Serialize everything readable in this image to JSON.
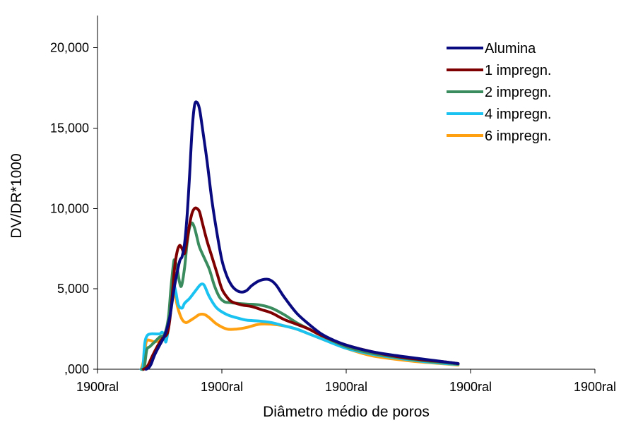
{
  "chart_data": {
    "type": "line",
    "title": "",
    "xlabel": "Diâmetro médio de poros",
    "ylabel": "DV/DR*1000",
    "xlim": [
      0,
      200
    ],
    "ylim": [
      0,
      22000
    ],
    "x_tick_labels": [
      "1900ral",
      "1900ral",
      "1900ral",
      "1900ral",
      "1900ral"
    ],
    "y_ticks": [
      {
        "value": 0,
        "label": ",000"
      },
      {
        "value": 5000,
        "label": "5,000"
      },
      {
        "value": 10000,
        "label": "10,000"
      },
      {
        "value": 15000,
        "label": "15,000"
      },
      {
        "value": 20000,
        "label": "20,000"
      }
    ],
    "grid": false,
    "legend": "top-right",
    "series": [
      {
        "name": "Alumina",
        "color": "#0a0a80",
        "points": [
          [
            19.5,
            0
          ],
          [
            20.5,
            80
          ],
          [
            21.5,
            300
          ],
          [
            23,
            900
          ],
          [
            25,
            1500
          ],
          [
            27,
            2100
          ],
          [
            29,
            3200
          ],
          [
            31,
            5200
          ],
          [
            33,
            6700
          ],
          [
            34,
            7000
          ],
          [
            35,
            7800
          ],
          [
            36,
            9500
          ],
          [
            37,
            12000
          ],
          [
            38,
            14800
          ],
          [
            39,
            16400
          ],
          [
            40,
            16600
          ],
          [
            41,
            16200
          ],
          [
            42,
            15200
          ],
          [
            44,
            13000
          ],
          [
            46,
            10500
          ],
          [
            48,
            8500
          ],
          [
            50,
            6800
          ],
          [
            52,
            5800
          ],
          [
            54,
            5200
          ],
          [
            56,
            4900
          ],
          [
            58,
            4800
          ],
          [
            60,
            4900
          ],
          [
            62,
            5200
          ],
          [
            65,
            5500
          ],
          [
            68,
            5600
          ],
          [
            70,
            5500
          ],
          [
            72,
            5200
          ],
          [
            75,
            4500
          ],
          [
            80,
            3500
          ],
          [
            85,
            2800
          ],
          [
            90,
            2200
          ],
          [
            95,
            1800
          ],
          [
            100,
            1500
          ],
          [
            110,
            1100
          ],
          [
            120,
            850
          ],
          [
            130,
            650
          ],
          [
            140,
            450
          ],
          [
            145,
            350
          ]
        ]
      },
      {
        "name": "1 impregn.",
        "color": "#7f0000",
        "points": [
          [
            18.5,
            0
          ],
          [
            19.5,
            80
          ],
          [
            20.5,
            300
          ],
          [
            22,
            800
          ],
          [
            24,
            1400
          ],
          [
            26,
            1900
          ],
          [
            28,
            2200
          ],
          [
            29,
            3000
          ],
          [
            30,
            4500
          ],
          [
            31,
            6300
          ],
          [
            32,
            7300
          ],
          [
            33,
            7700
          ],
          [
            34,
            7500
          ],
          [
            35,
            7200
          ],
          [
            36,
            8000
          ],
          [
            37,
            9000
          ],
          [
            38,
            9700
          ],
          [
            39,
            10000
          ],
          [
            40,
            10000
          ],
          [
            41,
            9800
          ],
          [
            42,
            9200
          ],
          [
            44,
            8000
          ],
          [
            46,
            7000
          ],
          [
            48,
            6000
          ],
          [
            50,
            5000
          ],
          [
            52,
            4500
          ],
          [
            54,
            4200
          ],
          [
            58,
            4000
          ],
          [
            62,
            3900
          ],
          [
            66,
            3700
          ],
          [
            70,
            3500
          ],
          [
            75,
            3100
          ],
          [
            80,
            2800
          ],
          [
            85,
            2500
          ],
          [
            90,
            2100
          ],
          [
            100,
            1500
          ],
          [
            110,
            1100
          ],
          [
            120,
            800
          ],
          [
            130,
            600
          ],
          [
            140,
            450
          ],
          [
            145,
            350
          ]
        ]
      },
      {
        "name": "2 impregn.",
        "color": "#3a8c5e",
        "points": [
          [
            17.8,
            0
          ],
          [
            18.8,
            100
          ],
          [
            19.8,
            1200
          ],
          [
            21,
            1400
          ],
          [
            23,
            1700
          ],
          [
            25,
            2000
          ],
          [
            27,
            2200
          ],
          [
            28.5,
            3200
          ],
          [
            29.5,
            5000
          ],
          [
            30.5,
            6500
          ],
          [
            31,
            6800
          ],
          [
            32,
            6300
          ],
          [
            33,
            5400
          ],
          [
            33.8,
            5200
          ],
          [
            35,
            6300
          ],
          [
            36,
            7800
          ],
          [
            37,
            8800
          ],
          [
            38,
            9100
          ],
          [
            39,
            8800
          ],
          [
            40,
            8200
          ],
          [
            41,
            7600
          ],
          [
            43,
            6900
          ],
          [
            45,
            6200
          ],
          [
            47,
            5200
          ],
          [
            49,
            4500
          ],
          [
            51,
            4200
          ],
          [
            53,
            4150
          ],
          [
            56,
            4100
          ],
          [
            60,
            4050
          ],
          [
            65,
            4000
          ],
          [
            70,
            3800
          ],
          [
            75,
            3400
          ],
          [
            80,
            2900
          ],
          [
            85,
            2500
          ],
          [
            90,
            2100
          ],
          [
            100,
            1400
          ],
          [
            110,
            1000
          ],
          [
            120,
            750
          ],
          [
            130,
            550
          ],
          [
            140,
            400
          ],
          [
            145,
            320
          ]
        ]
      },
      {
        "name": "4 impregn.",
        "color": "#19c2f0",
        "points": [
          [
            17.5,
            0
          ],
          [
            18.3,
            200
          ],
          [
            19,
            1600
          ],
          [
            20,
            2100
          ],
          [
            21.5,
            2200
          ],
          [
            23,
            2200
          ],
          [
            25,
            2200
          ],
          [
            26,
            2300
          ],
          [
            27,
            2100
          ],
          [
            27.5,
            1700
          ],
          [
            28.5,
            2600
          ],
          [
            29.5,
            4300
          ],
          [
            30.5,
            5300
          ],
          [
            31.5,
            4800
          ],
          [
            32.5,
            4000
          ],
          [
            34,
            3800
          ],
          [
            35,
            4100
          ],
          [
            37,
            4400
          ],
          [
            39,
            4800
          ],
          [
            41,
            5200
          ],
          [
            42,
            5300
          ],
          [
            43,
            5200
          ],
          [
            45,
            4500
          ],
          [
            48,
            3800
          ],
          [
            52,
            3400
          ],
          [
            56,
            3200
          ],
          [
            60,
            3050
          ],
          [
            65,
            3000
          ],
          [
            70,
            2900
          ],
          [
            75,
            2700
          ],
          [
            80,
            2500
          ],
          [
            85,
            2200
          ],
          [
            90,
            1900
          ],
          [
            100,
            1300
          ],
          [
            110,
            950
          ],
          [
            120,
            700
          ],
          [
            130,
            500
          ],
          [
            140,
            350
          ],
          [
            145,
            300
          ]
        ]
      },
      {
        "name": "6 impregn.",
        "color": "#ffa010",
        "points": [
          [
            17.6,
            0
          ],
          [
            18.6,
            600
          ],
          [
            19.6,
            1700
          ],
          [
            21,
            1800
          ],
          [
            23,
            1700
          ],
          [
            25,
            1800
          ],
          [
            27,
            1900
          ],
          [
            28,
            2100
          ],
          [
            29,
            3200
          ],
          [
            30,
            4500
          ],
          [
            30.8,
            5000
          ],
          [
            31.5,
            4400
          ],
          [
            32.5,
            3700
          ],
          [
            34,
            3100
          ],
          [
            35.5,
            2900
          ],
          [
            37,
            3000
          ],
          [
            39,
            3200
          ],
          [
            41,
            3400
          ],
          [
            43,
            3400
          ],
          [
            45,
            3200
          ],
          [
            48,
            2800
          ],
          [
            52,
            2500
          ],
          [
            56,
            2500
          ],
          [
            60,
            2600
          ],
          [
            65,
            2800
          ],
          [
            70,
            2800
          ],
          [
            75,
            2700
          ],
          [
            80,
            2500
          ],
          [
            85,
            2200
          ],
          [
            90,
            1900
          ],
          [
            100,
            1300
          ],
          [
            110,
            850
          ],
          [
            120,
            620
          ],
          [
            130,
            450
          ],
          [
            140,
            330
          ],
          [
            145,
            260
          ]
        ]
      }
    ]
  }
}
